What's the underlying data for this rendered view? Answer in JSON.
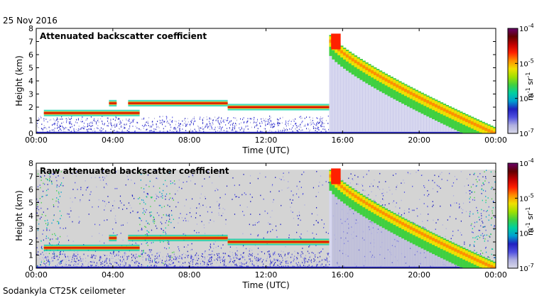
{
  "header": {
    "date": "25 Nov 2016"
  },
  "footer": {
    "instrument": "Sodankyla CT25K ceilometer"
  },
  "colors": {
    "colormap": [
      "#d8d8e8",
      "#b0b0e0",
      "#5050e0",
      "#2020c0",
      "#00a0d0",
      "#00d0a0",
      "#40d040",
      "#a0e000",
      "#f0e000",
      "#ff9000",
      "#ff2000",
      "#c00000",
      "#600000",
      "#6a006a"
    ],
    "cloud_layer": "#cc0000",
    "noise_gray": "#d4d4d4"
  },
  "chart_data": [
    {
      "type": "heatmap",
      "title": "Attenuated backscatter coefficient",
      "xlabel": "Time (UTC)",
      "ylabel": "Height (km)",
      "xlim": [
        0,
        24
      ],
      "ylim": [
        0,
        8
      ],
      "xticks": [
        "00:00",
        "04:00",
        "08:00",
        "12:00",
        "16:00",
        "20:00",
        "00:00"
      ],
      "yticks": [
        "0",
        "1",
        "2",
        "3",
        "4",
        "5",
        "6",
        "7",
        "8"
      ],
      "colorbar": {
        "scale": "log",
        "range": [
          1e-07,
          0.0001
        ],
        "ticks": [
          {
            "base": "10",
            "exp": "-4"
          },
          {
            "base": "10",
            "exp": "-5"
          },
          {
            "base": "10",
            "exp": "-6"
          },
          {
            "base": "10",
            "exp": "-7"
          }
        ],
        "label": {
          "unit_m": "m",
          "exp_m": "-1",
          "unit_sr": " sr",
          "exp_sr": "-1"
        }
      },
      "cloud_layers": [
        {
          "t0": 0.4,
          "t1": 5.4,
          "h": 1.55
        },
        {
          "t0": 3.8,
          "t1": 4.2,
          "h": 2.3
        },
        {
          "t0": 4.8,
          "t1": 10.0,
          "h": 2.3
        },
        {
          "t0": 10.0,
          "t1": 15.3,
          "h": 2.0
        }
      ],
      "precip_band": {
        "t0": 15.3,
        "t1": 24.0,
        "top_start": 7.5,
        "top_end": 0.4
      }
    },
    {
      "type": "heatmap",
      "title": "Raw attenuated backscatter coefficient",
      "xlabel": "Time (UTC)",
      "ylabel": "Height (km)",
      "xlim": [
        0,
        24
      ],
      "ylim": [
        0,
        8
      ],
      "xticks": [
        "00:00",
        "04:00",
        "08:00",
        "12:00",
        "16:00",
        "20:00",
        "00:00"
      ],
      "yticks": [
        "0",
        "1",
        "2",
        "3",
        "4",
        "5",
        "6",
        "7",
        "8"
      ],
      "colorbar": {
        "scale": "log",
        "range": [
          1e-07,
          0.0001
        ],
        "ticks": [
          {
            "base": "10",
            "exp": "-4"
          },
          {
            "base": "10",
            "exp": "-5"
          },
          {
            "base": "10",
            "exp": "-6"
          },
          {
            "base": "10",
            "exp": "-7"
          }
        ],
        "label": {
          "unit_m": "m",
          "exp_m": "-1",
          "unit_sr": " sr",
          "exp_sr": "-1"
        }
      },
      "cloud_layers": [
        {
          "t0": 0.4,
          "t1": 5.4,
          "h": 1.55
        },
        {
          "t0": 3.8,
          "t1": 4.2,
          "h": 2.3
        },
        {
          "t0": 4.8,
          "t1": 10.0,
          "h": 2.3
        },
        {
          "t0": 10.0,
          "t1": 15.3,
          "h": 2.0
        }
      ],
      "precip_band": {
        "t0": 15.3,
        "t1": 24.0,
        "top_start": 7.5,
        "top_end": 0.4
      }
    }
  ]
}
